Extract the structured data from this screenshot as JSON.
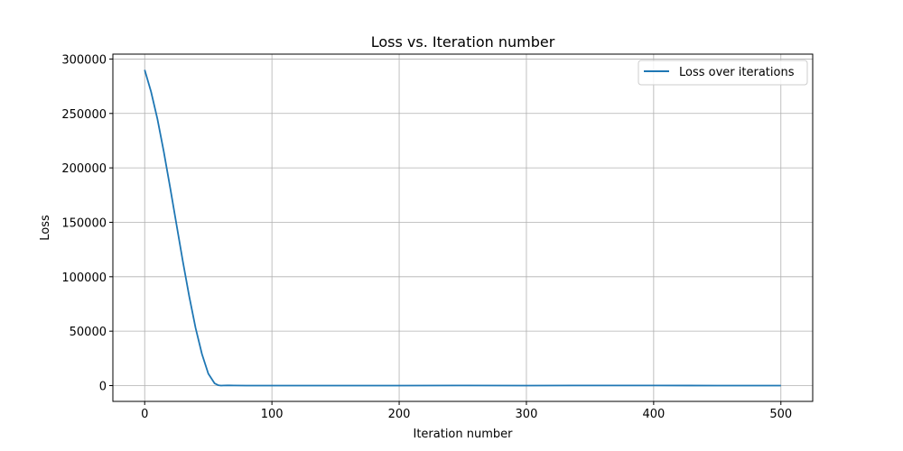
{
  "chart_data": {
    "type": "line",
    "title": "Loss vs. Iteration number",
    "xlabel": "Iteration number",
    "ylabel": "Loss",
    "xlim": [
      -25,
      525
    ],
    "ylim": [
      -14500,
      304500
    ],
    "xticks": [
      0,
      100,
      200,
      300,
      400,
      500
    ],
    "yticks": [
      0,
      50000,
      100000,
      150000,
      200000,
      250000,
      300000
    ],
    "grid": true,
    "legend_position": "top-right",
    "series": [
      {
        "name": "Loss over iterations",
        "color": "#1f77b4",
        "x": [
          0,
          5,
          10,
          15,
          20,
          25,
          30,
          35,
          40,
          45,
          50,
          55,
          58,
          60,
          62,
          65,
          70,
          80,
          100,
          150,
          200,
          250,
          300,
          350,
          400,
          450,
          500
        ],
        "y": [
          290000,
          270000,
          245000,
          215000,
          182000,
          148000,
          114000,
          82000,
          53000,
          29000,
          11000,
          2000,
          300,
          0,
          100,
          200,
          100,
          0,
          0,
          0,
          0,
          100,
          0,
          100,
          100,
          0,
          0
        ]
      }
    ]
  }
}
